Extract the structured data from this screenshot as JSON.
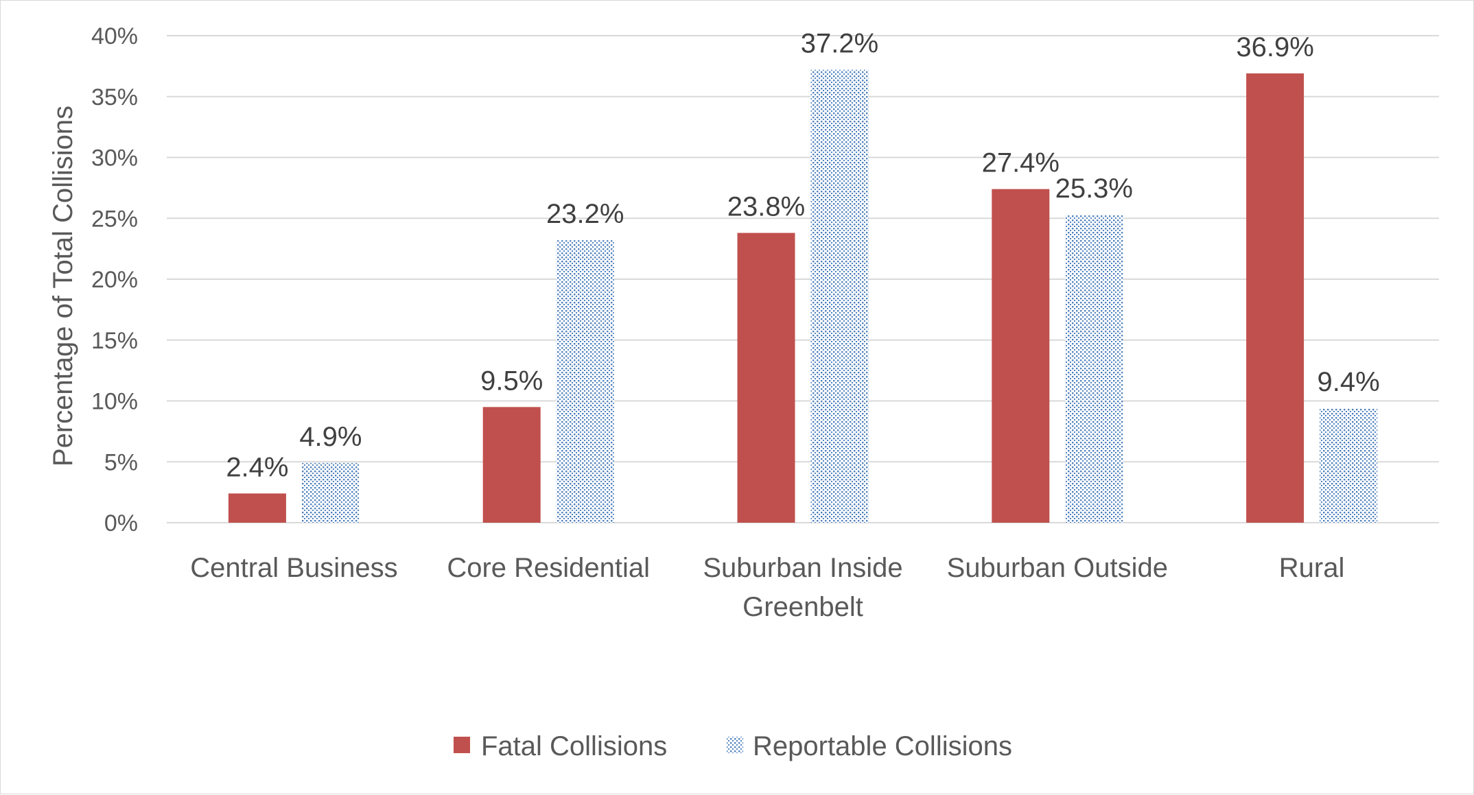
{
  "chart_data": {
    "type": "bar",
    "title": "",
    "xlabel": "",
    "ylabel": "Percentage of Total Collisions",
    "ylim": [
      0,
      40
    ],
    "ytick_step": 5,
    "ytick_format": "percent",
    "grid": true,
    "legend_position": "bottom",
    "categories": [
      [
        "Central Business"
      ],
      [
        "Core Residential"
      ],
      [
        "Suburban Inside",
        "Greenbelt"
      ],
      [
        "Suburban Outside"
      ],
      [
        "Rural"
      ]
    ],
    "series": [
      {
        "name": "Fatal Collisions",
        "values": [
          2.4,
          9.5,
          23.8,
          27.4,
          36.9
        ],
        "labels": [
          "2.4%",
          "9.5%",
          "23.8%",
          "27.4%",
          "36.9%"
        ],
        "color": "#c0504d",
        "fill": "solid"
      },
      {
        "name": "Reportable Collisions",
        "values": [
          4.9,
          23.2,
          37.2,
          25.3,
          9.4
        ],
        "labels": [
          "4.9%",
          "23.2%",
          "37.2%",
          "25.3%",
          "9.4%"
        ],
        "color": "#4f81bd",
        "fill": "dotted"
      }
    ]
  }
}
